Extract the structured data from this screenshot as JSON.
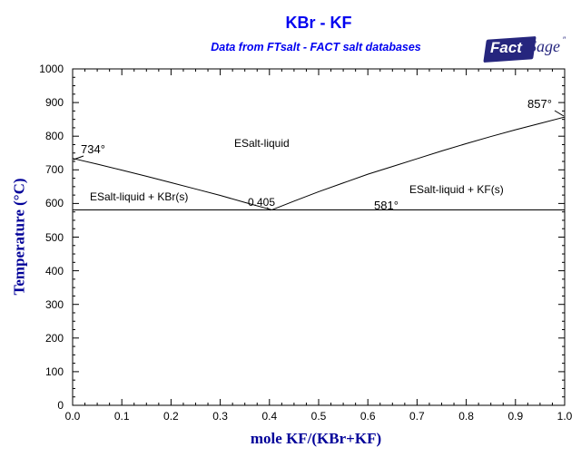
{
  "header": {
    "title": "KBr - KF",
    "subtitle": "Data from FTsalt - FACT salt databases"
  },
  "logo": {
    "fact": "Fact",
    "sage": "Sage",
    "mark": "″"
  },
  "colors": {
    "title_blue": "#0000F0",
    "axis_label_blue": "#000099",
    "logo_navy": "#26267E",
    "line_black": "#000000"
  },
  "chart_data": {
    "type": "line",
    "title": "KBr - KF",
    "subtitle": "Data from FTsalt - FACT salt databases",
    "xlabel": "mole KF/(KBr+KF)",
    "ylabel": "Temperature (°C)",
    "xlim": [
      0.0,
      1.0
    ],
    "ylim": [
      0,
      1000
    ],
    "grid": false,
    "legend": "none",
    "x_tick_labels": [
      "0.0",
      "0.1",
      "0.2",
      "0.3",
      "0.4",
      "0.5",
      "0.6",
      "0.7",
      "0.8",
      "0.9",
      "1.0"
    ],
    "y_tick_labels": [
      "0",
      "100",
      "200",
      "300",
      "400",
      "500",
      "600",
      "700",
      "800",
      "900",
      "1000"
    ],
    "x_minor_step": 0.025,
    "y_minor_step": 25,
    "series": [
      {
        "name": "liquidus-KBr-branch",
        "points": [
          [
            0.0,
            734
          ],
          [
            0.05,
            717
          ],
          [
            0.1,
            699
          ],
          [
            0.15,
            681
          ],
          [
            0.2,
            662
          ],
          [
            0.25,
            643
          ],
          [
            0.3,
            624
          ],
          [
            0.35,
            603
          ],
          [
            0.405,
            581
          ]
        ]
      },
      {
        "name": "liquidus-KF-branch",
        "points": [
          [
            0.405,
            581
          ],
          [
            0.45,
            607
          ],
          [
            0.5,
            635
          ],
          [
            0.55,
            661
          ],
          [
            0.6,
            687
          ],
          [
            0.65,
            710
          ],
          [
            0.7,
            733
          ],
          [
            0.75,
            756
          ],
          [
            0.8,
            778
          ],
          [
            0.85,
            799
          ],
          [
            0.9,
            819
          ],
          [
            0.95,
            838
          ],
          [
            1.0,
            857
          ]
        ]
      },
      {
        "name": "eutectic-isotherm-581",
        "points": [
          [
            0.0,
            581
          ],
          [
            1.0,
            581
          ]
        ]
      }
    ],
    "annotations": {
      "kbr_melting_point": "734°",
      "kf_melting_point": "857°",
      "eutectic_composition": "0.405",
      "eutectic_temperature": "581°",
      "region_liquid": "ESalt-liquid",
      "region_kbr": "ESalt-liquid + KBr(s)",
      "region_kf": "ESalt-liquid + KF(s)"
    }
  }
}
